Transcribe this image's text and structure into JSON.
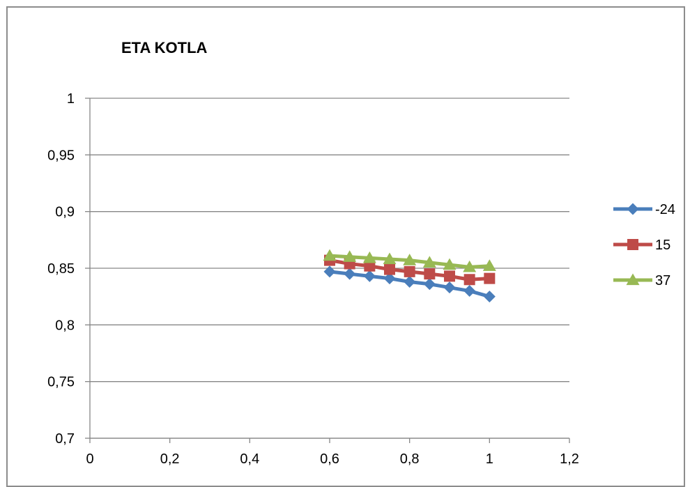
{
  "chart_data": {
    "type": "line",
    "title": "ETA KOTLA",
    "xlabel": "",
    "ylabel": "",
    "xlim": [
      0,
      1.2
    ],
    "ylim": [
      0.7,
      1
    ],
    "x_ticks": [
      "0",
      "0,2",
      "0,4",
      "0,6",
      "0,8",
      "1",
      "1,2"
    ],
    "y_ticks": [
      "0,7",
      "0,75",
      "0,8",
      "0,85",
      "0,9",
      "0,95",
      "1"
    ],
    "grid": "horizontal",
    "legend_position": "right",
    "x": [
      0.6,
      0.65,
      0.7,
      0.75,
      0.8,
      0.85,
      0.9,
      0.95,
      1.0
    ],
    "series": [
      {
        "name": "-24",
        "color": "#4a7ebb",
        "marker": "diamond",
        "values": [
          0.847,
          0.845,
          0.843,
          0.841,
          0.838,
          0.836,
          0.833,
          0.83,
          0.825
        ]
      },
      {
        "name": "15",
        "color": "#be4b48",
        "marker": "square",
        "values": [
          0.857,
          0.854,
          0.852,
          0.849,
          0.847,
          0.845,
          0.843,
          0.84,
          0.841
        ]
      },
      {
        "name": "37",
        "color": "#98b954",
        "marker": "triangle",
        "values": [
          0.861,
          0.86,
          0.859,
          0.858,
          0.857,
          0.855,
          0.853,
          0.851,
          0.852
        ]
      }
    ]
  }
}
